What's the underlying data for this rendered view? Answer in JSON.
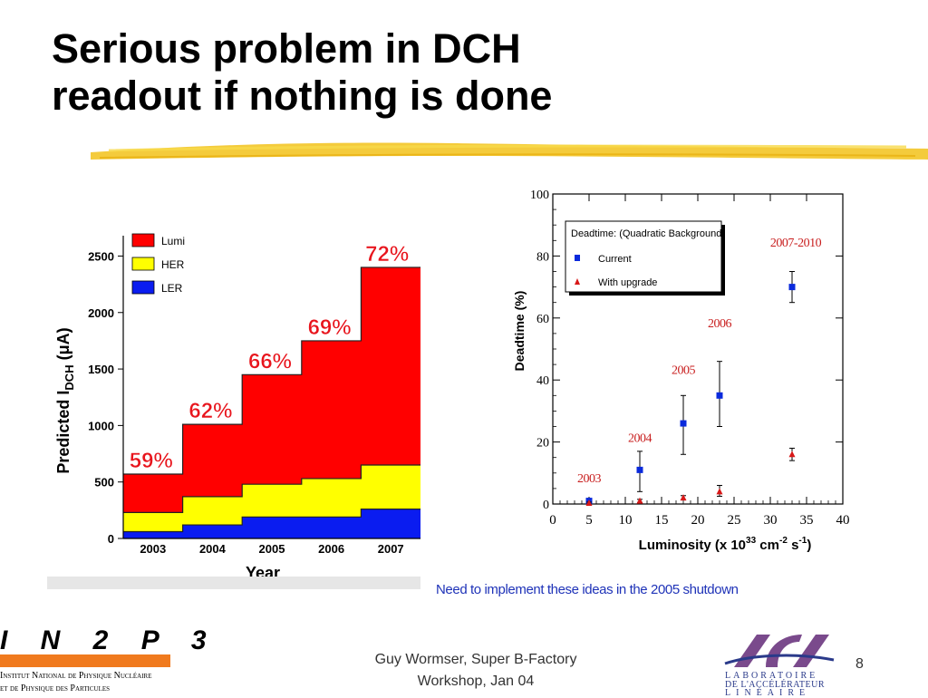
{
  "slide": {
    "title_line1": "Serious problem in DCH",
    "title_line2": "readout if nothing is done",
    "note": "Need to implement these ideas in the 2005 shutdown",
    "footer_line1": "Guy Wormser, Super B-Factory",
    "footer_line2": "Workshop, Jan 04",
    "page_number": "8",
    "in2p3_logo": "I N 2 P 3",
    "in2p3_line1": "Institut National de Physique Nucléaire",
    "in2p3_line2": "et de Physique des Particules",
    "lal_logo": "LAL",
    "lal_line1": "LABORATOIRE",
    "lal_line2": "DE L'ACCÉLÉRATEUR",
    "lal_line3": "LINÉAIRE",
    "colors": {
      "title": "#000000",
      "brush": "#f2c21a",
      "note": "#1f33b8"
    }
  },
  "chart_data": [
    {
      "type": "area",
      "subtype": "stacked-step",
      "categories": [
        "2003",
        "2004",
        "2005",
        "2006",
        "2007"
      ],
      "series": [
        {
          "name": "LER",
          "color": "#0a1cf0",
          "values": [
            60,
            120,
            190,
            190,
            260
          ]
        },
        {
          "name": "HER",
          "color": "#ffff00",
          "values": [
            170,
            250,
            290,
            340,
            390
          ]
        },
        {
          "name": "Lumi",
          "color": "#ff0000",
          "values": [
            340,
            640,
            970,
            1220,
            1750
          ]
        }
      ],
      "totals": [
        570,
        1010,
        1450,
        1750,
        2400
      ],
      "annotations": [
        "59%",
        "62%",
        "66%",
        "69%",
        "72%"
      ],
      "ylabel": "Predicted I_DCH (μA)",
      "ylabel_main": "Predicted I",
      "ylabel_sub": "DCH",
      "ylabel_unit": "(μA)",
      "xlabel": "Year",
      "ylim": [
        0,
        2600
      ],
      "yticks": [
        0,
        500,
        1000,
        1500,
        2000,
        2500
      ],
      "legend": [
        "Lumi",
        "HER",
        "LER"
      ],
      "legend_position": "top-left",
      "annotation_color": "#e8141c"
    },
    {
      "type": "scatter",
      "x": [
        5,
        12,
        18,
        23,
        33
      ],
      "series": [
        {
          "name": "Current",
          "marker": "square",
          "color": "#0a2adc",
          "values": [
            1,
            11,
            26,
            35,
            70
          ],
          "errors": [
            [
              0.5,
              1.5
            ],
            [
              4,
              17
            ],
            [
              16,
              35
            ],
            [
              25,
              46
            ],
            [
              65,
              75
            ]
          ]
        },
        {
          "name": "With upgrade",
          "marker": "triangle",
          "color": "#d81818",
          "values": [
            0.3,
            1,
            2,
            4,
            16
          ],
          "errors": [
            [
              0,
              0.6
            ],
            [
              0.5,
              1.5
            ],
            [
              1.3,
              2.7
            ],
            [
              2.5,
              6
            ],
            [
              14,
              18
            ]
          ]
        }
      ],
      "point_labels": [
        "2003",
        "2004",
        "2005",
        "2006",
        "2007-2010"
      ],
      "point_label_y": [
        7,
        20,
        42,
        57,
        83
      ],
      "legend_title": "Deadtime: (Quadratic Background)",
      "legend_position": "top-left",
      "ylabel": "Deadtime (%)",
      "xlabel": "Luminosity (x 10^33 cm^-2 s^-1)",
      "xlabel_main": "Luminosity (x 10",
      "xlabel_exp1": "33",
      "xlabel_mid": " cm",
      "xlabel_exp2": "-2",
      "xlabel_mid2": " s",
      "xlabel_exp3": "-1",
      "xlabel_end": ")",
      "xlim": [
        0,
        40
      ],
      "ylim": [
        0,
        100
      ],
      "xticks": [
        0,
        5,
        10,
        15,
        20,
        25,
        30,
        35,
        40
      ],
      "yticks": [
        0,
        20,
        40,
        60,
        80,
        100
      ],
      "label_color": "#c81e1e"
    }
  ]
}
